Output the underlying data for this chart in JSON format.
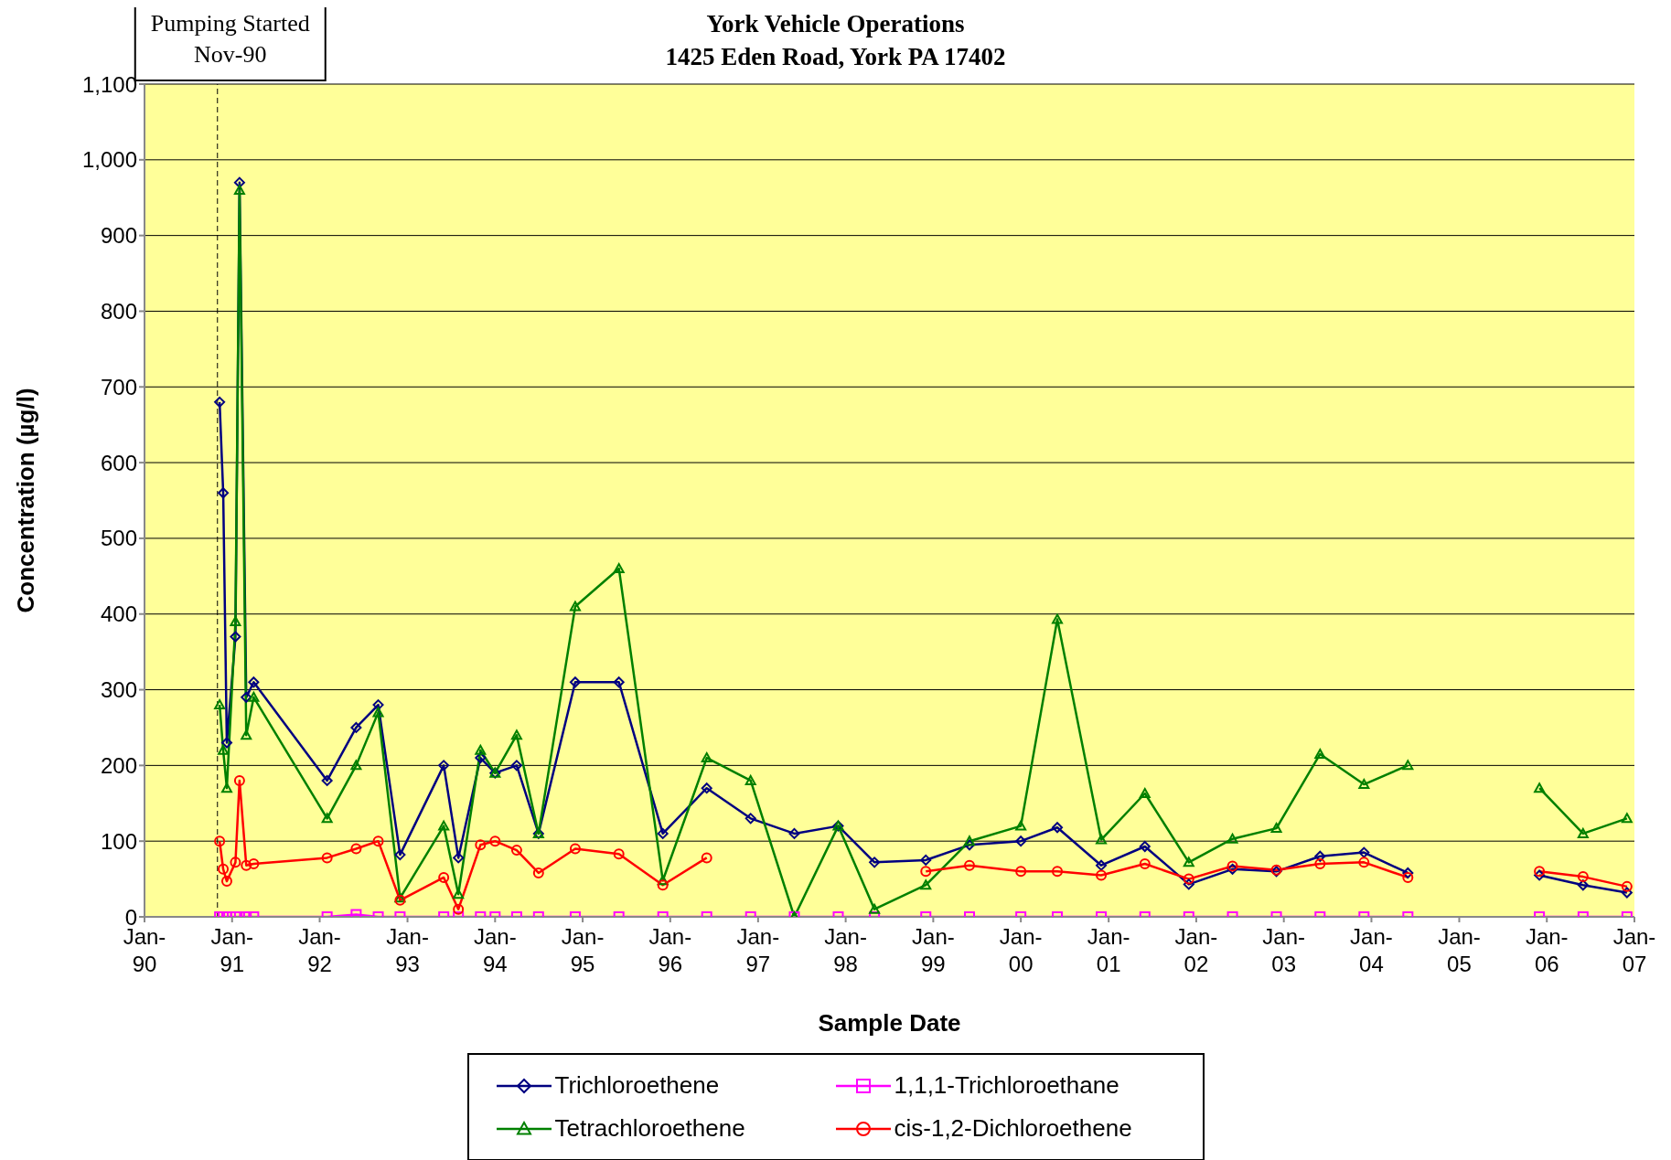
{
  "chart_data": {
    "type": "line",
    "title": "York Vehicle Operations",
    "subtitle": "1425 Eden Road, York PA  17402",
    "xlabel": "Sample Date",
    "ylabel": "Concentration (µg/l)",
    "x": [
      "1990-11-10",
      "1990-11-25",
      "1990-12-10",
      "1991-01-15",
      "1991-02",
      "1991-03",
      "1991-04",
      "1992-02",
      "1992-06",
      "1992-09",
      "1992-12",
      "1993-06",
      "1993-08",
      "1993-11",
      "1994-01",
      "1994-04",
      "1994-07",
      "1994-12",
      "1995-06",
      "1995-12",
      "1996-06",
      "1996-12",
      "1997-06",
      "1997-12",
      "1998-05",
      "1998-12",
      "1999-06",
      "2000-01",
      "2000-06",
      "2000-12",
      "2001-06",
      "2001-12",
      "2002-06",
      "2002-12",
      "2003-06",
      "2003-12",
      "2004-06",
      "2005-12",
      "2006-06",
      "2006-12"
    ],
    "series": [
      {
        "name": "Trichloroethene",
        "color": "#000080",
        "marker": "diamond",
        "values": [
          680,
          560,
          230,
          370,
          970,
          290,
          310,
          180,
          250,
          280,
          82,
          200,
          78,
          210,
          190,
          200,
          110,
          310,
          310,
          110,
          170,
          130,
          110,
          120,
          72,
          75,
          95,
          100,
          118,
          68,
          93,
          43,
          63,
          60,
          80,
          85,
          58,
          55,
          42,
          32
        ]
      },
      {
        "name": "1,1,1-Trichloroethane",
        "color": "#ff00ff",
        "marker": "square",
        "values": [
          0,
          0,
          0,
          0,
          0,
          0,
          0,
          0,
          3,
          0,
          0,
          0,
          0,
          0,
          0,
          0,
          0,
          0,
          0,
          0,
          0,
          0,
          0,
          0,
          0,
          0,
          0,
          0,
          0,
          0,
          0,
          0,
          0,
          0,
          0,
          0,
          0,
          0,
          0,
          0
        ]
      },
      {
        "name": "Tetrachloroethene",
        "color": "#008000",
        "marker": "triangle",
        "values": [
          280,
          220,
          170,
          390,
          960,
          240,
          290,
          130,
          200,
          270,
          25,
          120,
          30,
          220,
          190,
          240,
          110,
          410,
          460,
          48,
          210,
          180,
          0,
          120,
          10,
          42,
          100,
          120,
          393,
          102,
          163,
          72,
          103,
          117,
          215,
          175,
          200,
          170,
          110,
          130
        ]
      },
      {
        "name": "cis-1,2-Dichloroethene",
        "color": "#ff0000",
        "marker": "circle",
        "values": [
          100,
          63,
          47,
          72,
          180,
          68,
          70,
          78,
          90,
          100,
          22,
          52,
          10,
          95,
          100,
          88,
          58,
          90,
          83,
          42,
          78,
          null,
          null,
          null,
          null,
          60,
          68,
          60,
          60,
          55,
          70,
          50,
          67,
          62,
          70,
          72,
          52,
          60,
          53,
          40
        ]
      }
    ],
    "xlim": [
      "1990-01",
      "2007-01"
    ],
    "xticks": [
      {
        "value": "1990-01",
        "label": "Jan-90"
      },
      {
        "value": "1991-01",
        "label": "Jan-91"
      },
      {
        "value": "1992-01",
        "label": "Jan-92"
      },
      {
        "value": "1993-01",
        "label": "Jan-93"
      },
      {
        "value": "1994-01",
        "label": "Jan-94"
      },
      {
        "value": "1995-01",
        "label": "Jan-95"
      },
      {
        "value": "1996-01",
        "label": "Jan-96"
      },
      {
        "value": "1997-01",
        "label": "Jan-97"
      },
      {
        "value": "1998-01",
        "label": "Jan-98"
      },
      {
        "value": "1999-01",
        "label": "Jan-99"
      },
      {
        "value": "2000-01",
        "label": "Jan-00"
      },
      {
        "value": "2001-01",
        "label": "Jan-01"
      },
      {
        "value": "2002-01",
        "label": "Jan-02"
      },
      {
        "value": "2003-01",
        "label": "Jan-03"
      },
      {
        "value": "2004-01",
        "label": "Jan-04"
      },
      {
        "value": "2005-01",
        "label": "Jan-05"
      },
      {
        "value": "2006-01",
        "label": "Jan-06"
      },
      {
        "value": "2007-01",
        "label": "Jan-07"
      }
    ],
    "ylim": [
      0,
      1100
    ],
    "yticks": [
      0,
      100,
      200,
      300,
      400,
      500,
      600,
      700,
      800,
      900,
      {
        "value": 1000,
        "label": "1,000"
      },
      {
        "value": 1100,
        "label": "1,100"
      }
    ],
    "ref_lines": [
      {
        "axis": "x",
        "value": "1990-11-01",
        "label": "Pumping Started\nNov-90",
        "line_style": "dashed",
        "color": "#000000"
      }
    ],
    "grid": "y",
    "legend": "bottom",
    "line_style": "solid"
  }
}
